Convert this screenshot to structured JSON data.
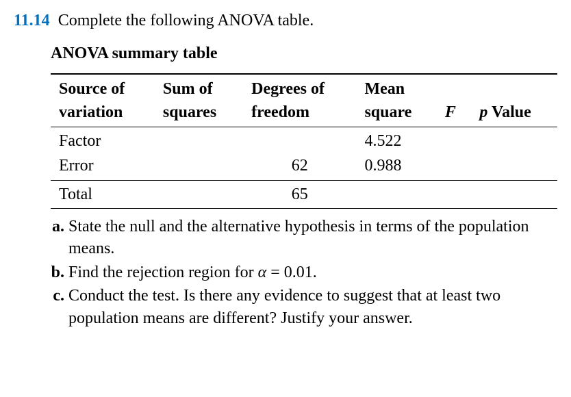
{
  "problem": {
    "number": "11.14",
    "prompt": "Complete the following ANOVA table."
  },
  "table": {
    "title": "ANOVA summary table",
    "header": {
      "col1_top": "Source of",
      "col1_bot": "variation",
      "col2_top": "Sum of",
      "col2_bot": "squares",
      "col3_top": "Degrees of",
      "col3_bot": "freedom",
      "col4_top": "Mean",
      "col4_bot": "square",
      "col5": "F",
      "col6_prefix": "p",
      "col6_rest": " Value"
    },
    "rows": {
      "factor": {
        "label": "Factor",
        "ss": "",
        "df": "",
        "ms": "4.522",
        "f": "",
        "p": ""
      },
      "error": {
        "label": "Error",
        "ss": "",
        "df": "62",
        "ms": "0.988",
        "f": "",
        "p": ""
      },
      "total": {
        "label": "Total",
        "ss": "",
        "df": "65",
        "ms": "",
        "f": "",
        "p": ""
      }
    }
  },
  "subparts": {
    "a": {
      "label": "a.",
      "text": "State the null and the alternative hypothesis in terms of the population means."
    },
    "b": {
      "label": "b.",
      "text_before": "Find the rejection region for ",
      "alpha": "α",
      "equals": " = 0.01."
    },
    "c": {
      "label": "c.",
      "text": "Conduct the test. Is there any evidence to suggest that at least two population means are different? Justify your answer."
    }
  },
  "colors": {
    "accent": "#0070c0",
    "text": "#000000",
    "background": "#ffffff"
  }
}
